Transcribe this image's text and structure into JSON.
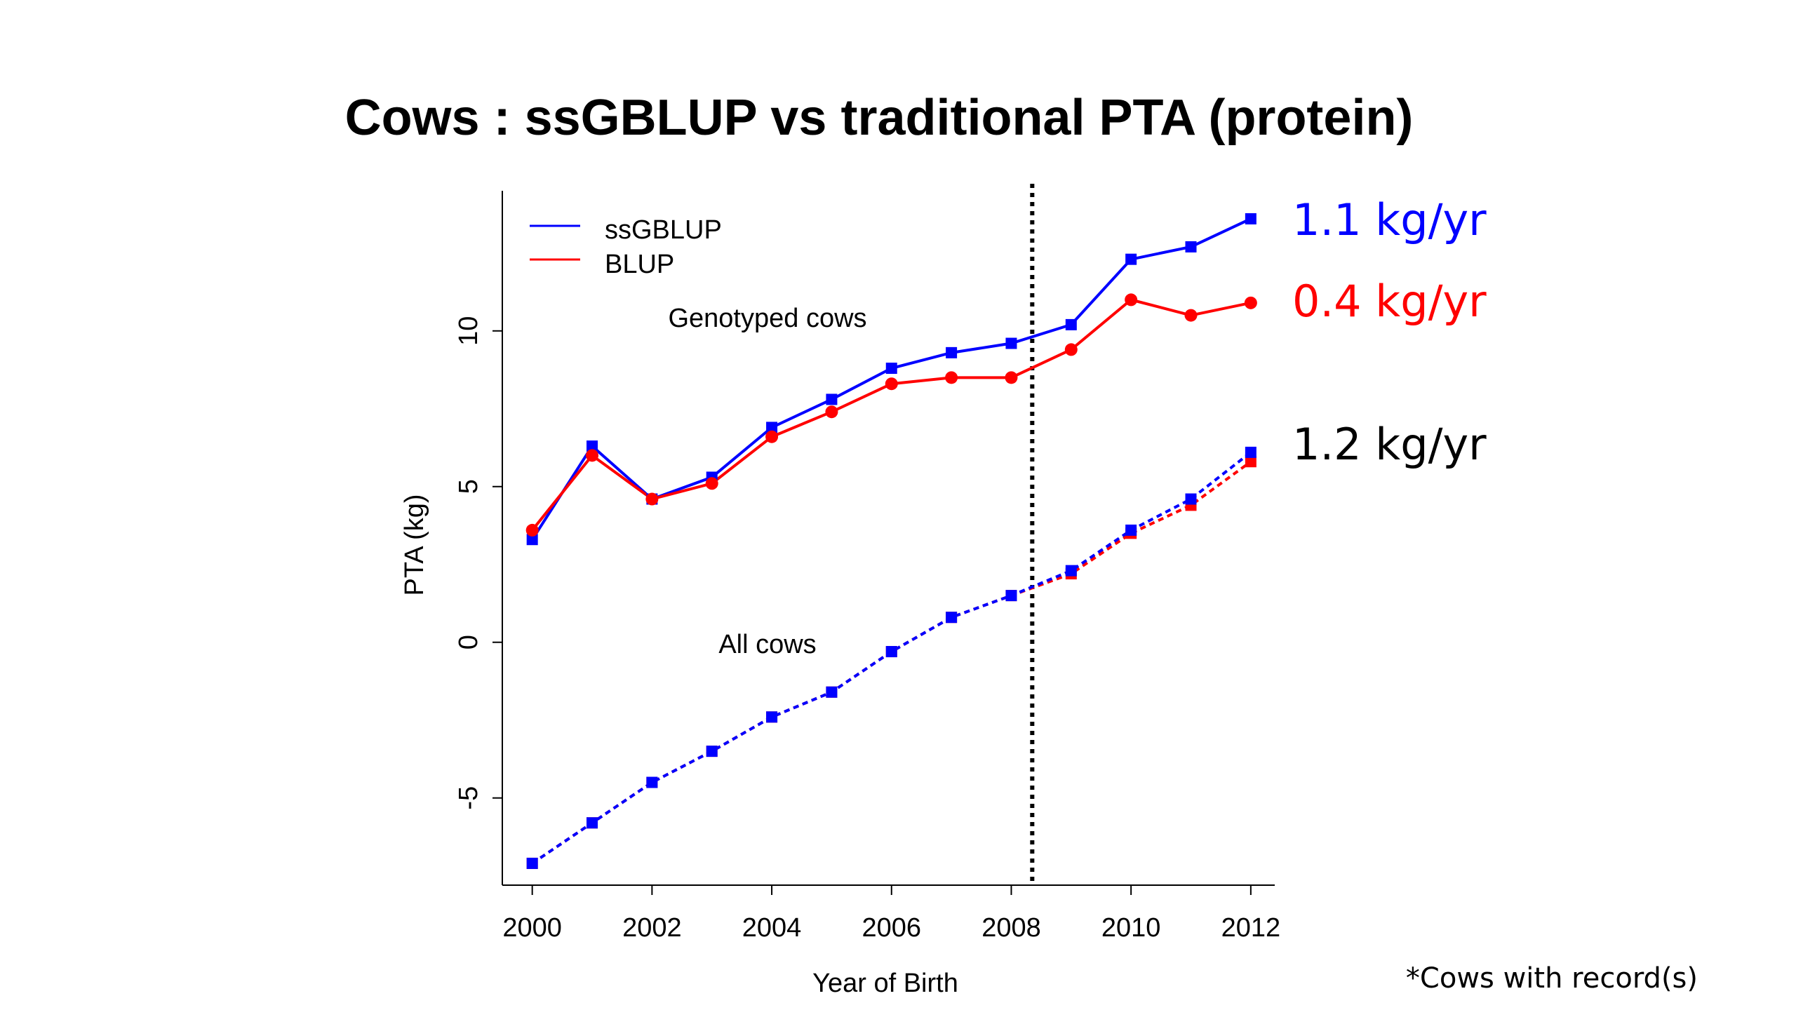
{
  "slide": {
    "title": "Cows : ssGBLUP vs traditional PTA (protein)",
    "footnote": "*Cows with record(s)"
  },
  "colors": {
    "ssgblup": "#0000ff",
    "blup": "#ff0000",
    "text": "#000000"
  },
  "rates": [
    {
      "text": "1.1 kg/yr",
      "color": "#0000ff"
    },
    {
      "text": "0.4 kg/yr",
      "color": "#ff0000"
    },
    {
      "text": "1.2 kg/yr",
      "color": "#000000"
    }
  ],
  "chart_data": {
    "type": "line",
    "title": "",
    "xlabel": "Year of Birth",
    "ylabel": "PTA (kg)",
    "xlim": [
      1999.5,
      2012.4
    ],
    "ylim": [
      -7.8,
      14.5
    ],
    "x_ticks": [
      2000,
      2002,
      2004,
      2006,
      2008,
      2010,
      2012
    ],
    "y_ticks": [
      -5,
      0,
      5,
      10
    ],
    "x": [
      2000,
      2001,
      2002,
      2003,
      2004,
      2005,
      2006,
      2007,
      2008,
      2009,
      2010,
      2011,
      2012
    ],
    "legend": {
      "position": "top-left",
      "entries": [
        "ssGBLUP",
        "BLUP"
      ]
    },
    "vline": {
      "x": 2008.35,
      "style": "dotted"
    },
    "annotations": [
      "Genotyped cows",
      "All cows"
    ],
    "series": [
      {
        "name": "ssGBLUP",
        "group": "Genotyped cows",
        "color": "#0000ff",
        "marker": "square",
        "line": "solid",
        "values": [
          3.3,
          6.3,
          4.6,
          5.3,
          6.9,
          7.8,
          8.8,
          9.3,
          9.6,
          10.2,
          12.3,
          12.7,
          13.6
        ]
      },
      {
        "name": "BLUP",
        "group": "Genotyped cows",
        "color": "#ff0000",
        "marker": "circle",
        "line": "solid",
        "values": [
          3.6,
          6.0,
          4.6,
          5.1,
          6.6,
          7.4,
          8.3,
          8.5,
          8.5,
          9.4,
          11.0,
          10.5,
          10.9
        ]
      },
      {
        "name": "BLUP",
        "group": "All cows",
        "color": "#ff0000",
        "marker": "square",
        "line": "dotted",
        "values": [
          -7.1,
          -5.8,
          -4.5,
          -3.5,
          -2.4,
          -1.6,
          -0.3,
          0.8,
          1.5,
          2.2,
          3.5,
          4.4,
          5.8
        ]
      },
      {
        "name": "ssGBLUP",
        "group": "All cows",
        "color": "#0000ff",
        "marker": "square",
        "line": "dotted",
        "values": [
          -7.1,
          -5.8,
          -4.5,
          -3.5,
          -2.4,
          -1.6,
          -0.3,
          0.8,
          1.5,
          2.3,
          3.6,
          4.6,
          6.1
        ]
      }
    ]
  }
}
